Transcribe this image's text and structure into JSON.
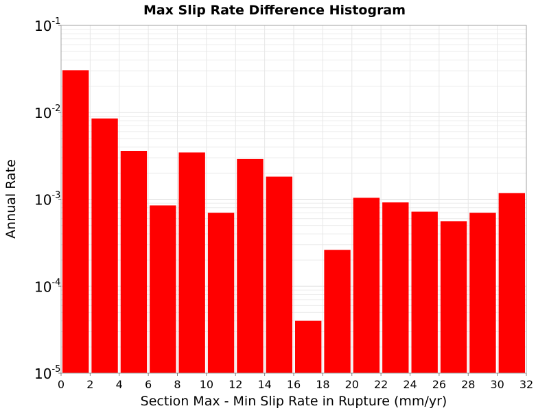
{
  "chart_data": {
    "type": "bar",
    "title": "Max Slip Rate Difference Histogram",
    "xlabel": "Section Max - Min Slip Rate in Rupture (mm/yr)",
    "ylabel": "Annual Rate",
    "yscale": "log",
    "xlim": [
      0,
      32
    ],
    "ylim": [
      1e-05,
      0.1
    ],
    "xticks": [
      "0",
      "2",
      "4",
      "6",
      "8",
      "10",
      "12",
      "14",
      "16",
      "18",
      "20",
      "22",
      "24",
      "26",
      "28",
      "30",
      "32"
    ],
    "xtick_values": [
      0,
      2,
      4,
      6,
      8,
      10,
      12,
      14,
      16,
      18,
      20,
      22,
      24,
      26,
      28,
      30,
      32
    ],
    "yticks": [
      {
        "base": "10",
        "exp": "-1",
        "value": 0.1
      },
      {
        "base": "10",
        "exp": "-2",
        "value": 0.01
      },
      {
        "base": "10",
        "exp": "-3",
        "value": 0.001
      },
      {
        "base": "10",
        "exp": "-4",
        "value": 0.0001
      },
      {
        "base": "10",
        "exp": "-5",
        "value": 1e-05
      }
    ],
    "bin_width": 2,
    "bins": [
      {
        "x": 1,
        "value": 0.0305
      },
      {
        "x": 3,
        "value": 0.0085
      },
      {
        "x": 5,
        "value": 0.0036
      },
      {
        "x": 7,
        "value": 0.00085
      },
      {
        "x": 9,
        "value": 0.00345
      },
      {
        "x": 11,
        "value": 0.0007
      },
      {
        "x": 13,
        "value": 0.0029
      },
      {
        "x": 15,
        "value": 0.00182
      },
      {
        "x": 17,
        "value": 4e-05
      },
      {
        "x": 19,
        "value": 0.000262
      },
      {
        "x": 21,
        "value": 0.00104
      },
      {
        "x": 23,
        "value": 0.00092
      },
      {
        "x": 25,
        "value": 0.00072
      },
      {
        "x": 27,
        "value": 0.00056
      },
      {
        "x": 29,
        "value": 0.0007
      },
      {
        "x": 31,
        "value": 0.00118
      }
    ],
    "bar_color": "#ff0000",
    "grid": true,
    "legend": "none"
  }
}
